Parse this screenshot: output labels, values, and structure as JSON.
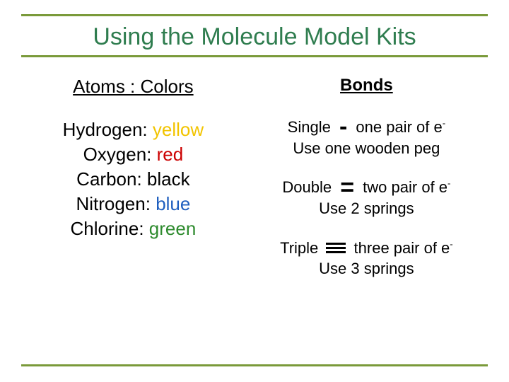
{
  "colors": {
    "title": "#2f7d4f",
    "rule": "#7a9a3a",
    "text": "#000000",
    "yellow": "#f2c400",
    "red": "#cc0000",
    "black": "#000000",
    "blue": "#1f5fbf",
    "green": "#2e8b2e"
  },
  "title": "Using the Molecule Model Kits",
  "left": {
    "heading": "Atoms   :   Colors",
    "atoms": [
      {
        "label": "Hydrogen:",
        "color_word": "yellow",
        "color_key": "yellow"
      },
      {
        "label": "Oxygen:",
        "color_word": "red",
        "color_key": "red"
      },
      {
        "label": "Carbon:",
        "color_word": "black",
        "color_key": "black"
      },
      {
        "label": "Nitrogen:",
        "color_word": "blue",
        "color_key": "blue"
      },
      {
        "label": "Chlorine:",
        "color_word": "green",
        "color_key": "green"
      }
    ]
  },
  "right": {
    "heading": "Bonds",
    "single": {
      "lead": "Single",
      "tail_a": "one pair of e",
      "tail_b": "-",
      "note": "Use one wooden peg"
    },
    "double": {
      "lead": "Double",
      "tail_a": "two pair of e",
      "tail_b": "-",
      "note": "Use 2 springs"
    },
    "triple": {
      "lead": "Triple",
      "tail_a": "three pair of e",
      "tail_b": "-",
      "note": "Use 3 springs"
    }
  }
}
